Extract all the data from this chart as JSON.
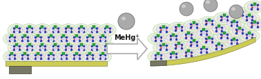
{
  "bg_color": "#ffffff",
  "arrow_text": "MeHg⁺",
  "substrate_color_dark": "#777766",
  "substrate_color_light": "#cccc55",
  "sphere_color": "#aaaaaa",
  "sphere_edge": "#777777",
  "monolayer": {
    "bubble_face": "#e8f5d8",
    "bubble_edge": "#aaccaa",
    "inner_face": "#e8e0f0",
    "inner_edge": "#ccaabb",
    "chain_red": "#cc2222",
    "chain_blue": "#2244bb",
    "node_green": "#22aa33",
    "node_white": "#e8e8f8"
  },
  "figsize": [
    3.78,
    1.16
  ],
  "dpi": 100
}
